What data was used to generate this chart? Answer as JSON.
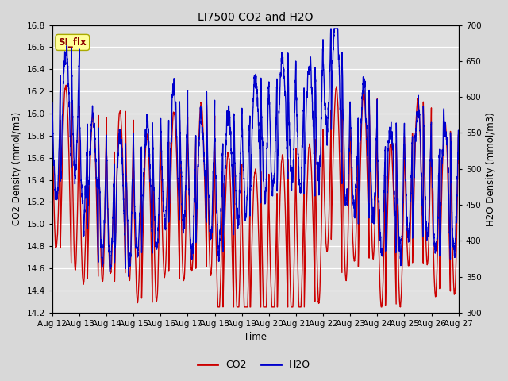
{
  "title": "LI7500 CO2 and H2O",
  "xlabel": "Time",
  "ylabel_left": "CO2 Density (mmol/m3)",
  "ylabel_right": "H2O Density (mmol/m3)",
  "ylim_left": [
    14.2,
    16.8
  ],
  "ylim_right": [
    300,
    700
  ],
  "yticks_left": [
    14.2,
    14.4,
    14.6,
    14.8,
    15.0,
    15.2,
    15.4,
    15.6,
    15.8,
    16.0,
    16.2,
    16.4,
    16.6,
    16.8
  ],
  "yticks_right": [
    300,
    350,
    400,
    450,
    500,
    550,
    600,
    650,
    700
  ],
  "xtick_labels": [
    "Aug 12",
    "Aug 13",
    "Aug 14",
    "Aug 15",
    "Aug 16",
    "Aug 17",
    "Aug 18",
    "Aug 19",
    "Aug 20",
    "Aug 21",
    "Aug 22",
    "Aug 23",
    "Aug 24",
    "Aug 25",
    "Aug 26",
    "Aug 27"
  ],
  "co2_color": "#cc0000",
  "h2o_color": "#0000cc",
  "bg_color": "#d8d8d8",
  "plot_bg_color": "#e0e0e0",
  "legend_co2": "CO2",
  "legend_h2o": "H2O",
  "annotation_text": "SI_flx",
  "annotation_bg": "#ffff99",
  "annotation_border": "#aaaa00",
  "linewidth": 1.0
}
